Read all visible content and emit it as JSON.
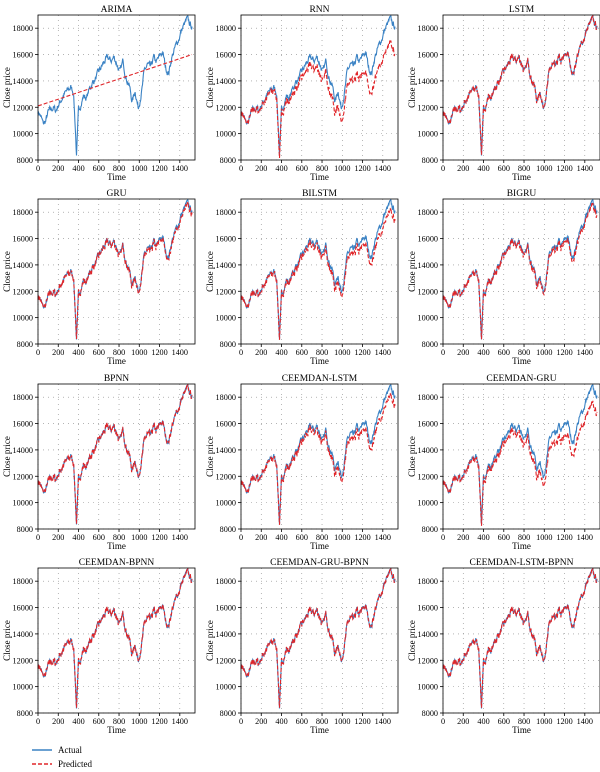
{
  "figure": {
    "ylabel": "Close price",
    "xlabel": "Time",
    "legend": {
      "placement": "bottom-left",
      "actual_label": "Actual",
      "predicted_label": "Predicted"
    },
    "colors": {
      "actual": "#3a82c4",
      "predicted": "#e0262a"
    }
  },
  "chart_data": [
    {
      "type": "line",
      "title": "ARIMA",
      "xlabel": "Time",
      "ylabel": "Close price",
      "xlim": [
        0,
        1550
      ],
      "ylim": [
        8000,
        19000
      ],
      "xticks": [
        0,
        200,
        400,
        600,
        800,
        1000,
        1200,
        1400
      ],
      "yticks": [
        8000,
        10000,
        12000,
        14000,
        16000,
        18000
      ],
      "grid": "dotted",
      "predicted_kind": "trend",
      "trend": [
        12100,
        16000
      ],
      "actual_approx": "shared Close price series"
    },
    {
      "type": "line",
      "title": "RNN",
      "xlabel": "Time",
      "ylabel": "Close price",
      "xlim": [
        0,
        1550
      ],
      "ylim": [
        8000,
        19000
      ],
      "xticks": [
        0,
        200,
        400,
        600,
        800,
        1000,
        1200,
        1400
      ],
      "yticks": [
        8000,
        10000,
        12000,
        14000,
        16000,
        18000
      ],
      "grid": "dotted",
      "predicted_kind": "scaled",
      "prediction_offset_start": 0,
      "prediction_offset_end": -2000
    },
    {
      "type": "line",
      "title": "LSTM",
      "xlabel": "Time",
      "ylabel": "Close price",
      "xlim": [
        0,
        1550
      ],
      "ylim": [
        8000,
        19000
      ],
      "xticks": [
        0,
        200,
        400,
        600,
        800,
        1000,
        1200,
        1400
      ],
      "yticks": [
        8000,
        10000,
        12000,
        14000,
        16000,
        18000
      ],
      "grid": "dotted",
      "predicted_kind": "tracking",
      "prediction_offset_start": 0,
      "prediction_offset_end": 0
    },
    {
      "type": "line",
      "title": "GRU",
      "xlabel": "Time",
      "ylabel": "Close price",
      "xlim": [
        0,
        1550
      ],
      "ylim": [
        8000,
        19000
      ],
      "xticks": [
        0,
        200,
        400,
        600,
        800,
        1000,
        1200,
        1400
      ],
      "yticks": [
        8000,
        10000,
        12000,
        14000,
        16000,
        18000
      ],
      "grid": "dotted",
      "predicted_kind": "tracking",
      "prediction_offset_start": 0,
      "prediction_offset_end": -200
    },
    {
      "type": "line",
      "title": "BILSTM",
      "xlabel": "Time",
      "ylabel": "Close price",
      "xlim": [
        0,
        1550
      ],
      "ylim": [
        8000,
        19000
      ],
      "xticks": [
        0,
        200,
        400,
        600,
        800,
        1000,
        1200,
        1400
      ],
      "yticks": [
        8000,
        10000,
        12000,
        14000,
        16000,
        18000
      ],
      "grid": "dotted",
      "predicted_kind": "tracking",
      "prediction_offset_start": 0,
      "prediction_offset_end": -700
    },
    {
      "type": "line",
      "title": "BIGRU",
      "xlabel": "Time",
      "ylabel": "Close price",
      "xlim": [
        0,
        1550
      ],
      "ylim": [
        8000,
        19000
      ],
      "xticks": [
        0,
        200,
        400,
        600,
        800,
        1000,
        1200,
        1400
      ],
      "yticks": [
        8000,
        10000,
        12000,
        14000,
        16000,
        18000
      ],
      "grid": "dotted",
      "predicted_kind": "tracking",
      "prediction_offset_start": 0,
      "prediction_offset_end": -300
    },
    {
      "type": "line",
      "title": "BPNN",
      "xlabel": "Time",
      "ylabel": "Close price",
      "xlim": [
        0,
        1550
      ],
      "ylim": [
        8000,
        19000
      ],
      "xticks": [
        0,
        200,
        400,
        600,
        800,
        1000,
        1200,
        1400
      ],
      "yticks": [
        8000,
        10000,
        12000,
        14000,
        16000,
        18000
      ],
      "grid": "dotted",
      "predicted_kind": "tracking",
      "prediction_offset_start": 0,
      "prediction_offset_end": 0
    },
    {
      "type": "line",
      "title": "CEEMDAN-LSTM",
      "xlabel": "Time",
      "ylabel": "Close price",
      "xlim": [
        0,
        1550
      ],
      "ylim": [
        8000,
        19000
      ],
      "xticks": [
        0,
        200,
        400,
        600,
        800,
        1000,
        1200,
        1400
      ],
      "yticks": [
        8000,
        10000,
        12000,
        14000,
        16000,
        18000
      ],
      "grid": "dotted",
      "predicted_kind": "tracking",
      "prediction_offset_start": 0,
      "prediction_offset_end": -700
    },
    {
      "type": "line",
      "title": "CEEMDAN-GRU",
      "xlabel": "Time",
      "ylabel": "Close price",
      "xlim": [
        0,
        1550
      ],
      "ylim": [
        8000,
        19000
      ],
      "xticks": [
        0,
        200,
        400,
        600,
        800,
        1000,
        1200,
        1400
      ],
      "yticks": [
        8000,
        10000,
        12000,
        14000,
        16000,
        18000
      ],
      "grid": "dotted",
      "predicted_kind": "tracking",
      "prediction_offset_start": 0,
      "prediction_offset_end": -1300
    },
    {
      "type": "line",
      "title": "CEEMDAN-BPNN",
      "xlabel": "Time",
      "ylabel": "Close price",
      "xlim": [
        0,
        1550
      ],
      "ylim": [
        8000,
        19000
      ],
      "xticks": [
        0,
        200,
        400,
        600,
        800,
        1000,
        1200,
        1400
      ],
      "yticks": [
        8000,
        10000,
        12000,
        14000,
        16000,
        18000
      ],
      "grid": "dotted",
      "predicted_kind": "tracking",
      "prediction_offset_start": 0,
      "prediction_offset_end": 0
    },
    {
      "type": "line",
      "title": "CEEMDAN-GRU-BPNN",
      "xlabel": "Time",
      "ylabel": "Close price",
      "xlim": [
        0,
        1550
      ],
      "ylim": [
        8000,
        19000
      ],
      "xticks": [
        0,
        200,
        400,
        600,
        800,
        1000,
        1200,
        1400
      ],
      "yticks": [
        8000,
        10000,
        12000,
        14000,
        16000,
        18000
      ],
      "grid": "dotted",
      "predicted_kind": "tracking",
      "prediction_offset_start": 0,
      "prediction_offset_end": 0
    },
    {
      "type": "line",
      "title": "CEEMDAN-LSTM-BPNN",
      "xlabel": "Time",
      "ylabel": "Close price",
      "xlim": [
        0,
        1550
      ],
      "ylim": [
        8000,
        19000
      ],
      "xticks": [
        0,
        200,
        400,
        600,
        800,
        1000,
        1200,
        1400
      ],
      "yticks": [
        8000,
        10000,
        12000,
        14000,
        16000,
        18000
      ],
      "grid": "dotted",
      "predicted_kind": "tracking",
      "prediction_offset_start": 0,
      "prediction_offset_end": 0
    }
  ],
  "actual_series": {
    "x": [
      0,
      25,
      50,
      75,
      100,
      125,
      150,
      175,
      200,
      225,
      250,
      275,
      300,
      325,
      350,
      370,
      380,
      390,
      400,
      420,
      450,
      480,
      510,
      540,
      570,
      600,
      630,
      660,
      690,
      720,
      750,
      780,
      810,
      840,
      870,
      900,
      930,
      960,
      990,
      1010,
      1030,
      1050,
      1080,
      1110,
      1140,
      1170,
      1200,
      1230,
      1260,
      1290,
      1320,
      1350,
      1380,
      1410,
      1440,
      1470,
      1500,
      1520
    ],
    "y": [
      11700,
      11400,
      10700,
      10900,
      11600,
      11700,
      12000,
      11700,
      12200,
      12500,
      12900,
      13100,
      13300,
      13500,
      13200,
      10200,
      8300,
      9900,
      11700,
      12200,
      12900,
      12700,
      13400,
      13900,
      14200,
      14600,
      15100,
      15500,
      15700,
      15500,
      15800,
      15300,
      14600,
      15500,
      14300,
      13700,
      12400,
      13300,
      11900,
      12800,
      13500,
      14700,
      15200,
      14900,
      15700,
      15400,
      15800,
      16200,
      15000,
      14600,
      15800,
      16400,
      17000,
      17700,
      18200,
      18600,
      18300,
      18100
    ]
  }
}
